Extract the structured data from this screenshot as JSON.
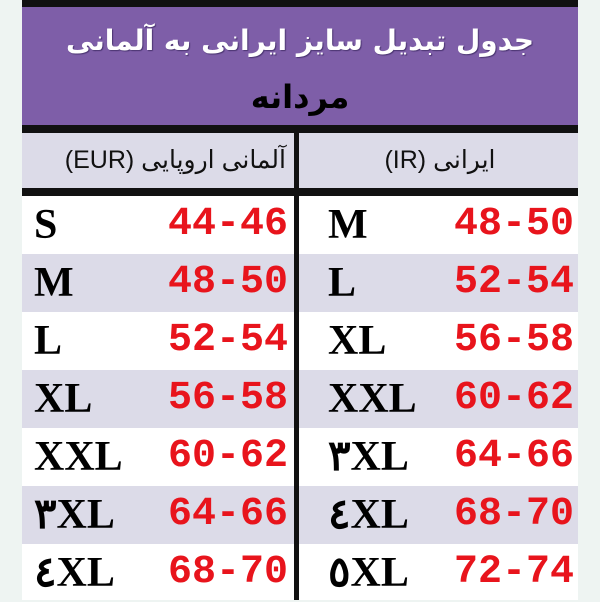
{
  "title": "جدول تبدیل سایز ایرانی به آلمانی",
  "subtitle": "مردانه",
  "headers": {
    "eur": "آلمانی اروپایی (EUR)",
    "ir": "ایرانی (IR)"
  },
  "colors": {
    "band": "#7e5ea8",
    "alt_row": "#dcdbe8",
    "number": "#e8141c"
  },
  "rows": [
    {
      "eur_size": "S",
      "eur_range": "44-46",
      "ir_size": "M",
      "ir_range": "48-50"
    },
    {
      "eur_size": "M",
      "eur_range": "48-50",
      "ir_size": "L",
      "ir_range": "52-54"
    },
    {
      "eur_size": "L",
      "eur_range": "52-54",
      "ir_size": "XL",
      "ir_range": "56-58"
    },
    {
      "eur_size": "XL",
      "eur_range": "56-58",
      "ir_size": "XXL",
      "ir_range": "60-62"
    },
    {
      "eur_size": "XXL",
      "eur_range": "60-62",
      "ir_size": "٣XL",
      "ir_range": "64-66"
    },
    {
      "eur_size": "٣XL",
      "eur_range": "64-66",
      "ir_size": "٤XL",
      "ir_range": "68-70"
    },
    {
      "eur_size": "٤XL",
      "eur_range": "68-70",
      "ir_size": "٥XL",
      "ir_range": "72-74"
    }
  ]
}
